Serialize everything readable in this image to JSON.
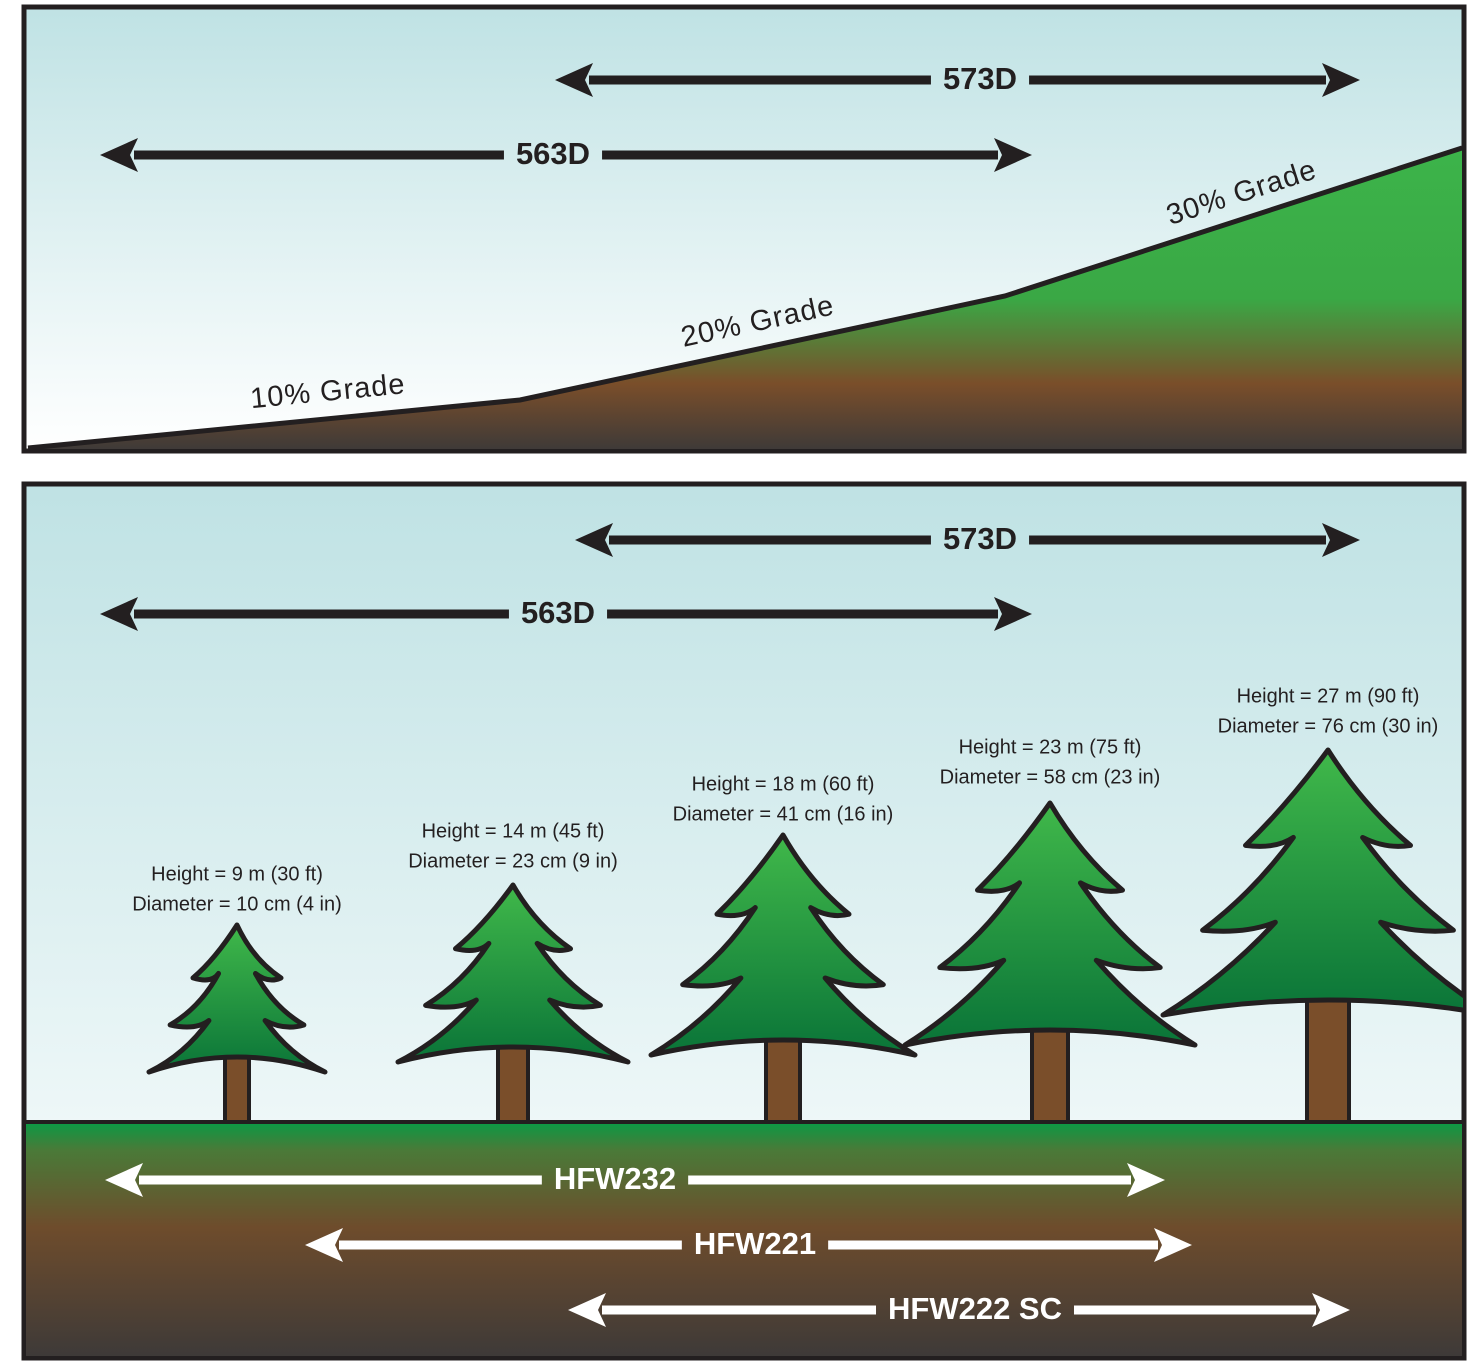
{
  "top_panel": {
    "arrows": [
      {
        "label": "573D"
      },
      {
        "label": "563D"
      }
    ],
    "grades": [
      "10% Grade",
      "20% Grade",
      "30% Grade"
    ]
  },
  "bottom_panel": {
    "arrows": [
      {
        "label": "573D"
      },
      {
        "label": "563D"
      }
    ],
    "trees": [
      {
        "height": "Height = 9 m (30 ft)",
        "diameter": "Diameter = 10 cm (4 in)"
      },
      {
        "height": "Height = 14 m (45 ft)",
        "diameter": "Diameter = 23 cm (9 in)"
      },
      {
        "height": "Height = 18 m (60 ft)",
        "diameter": "Diameter = 41 cm (16 in)"
      },
      {
        "height": "Height = 23 m (75 ft)",
        "diameter": "Diameter = 58 cm (23 in)"
      },
      {
        "height": "Height = 27 m (90 ft)",
        "diameter": "Diameter = 76 cm (30 in)"
      }
    ],
    "ground_arrows": [
      {
        "label": "HFW232"
      },
      {
        "label": "HFW221"
      },
      {
        "label": "HFW222 SC"
      }
    ]
  }
}
